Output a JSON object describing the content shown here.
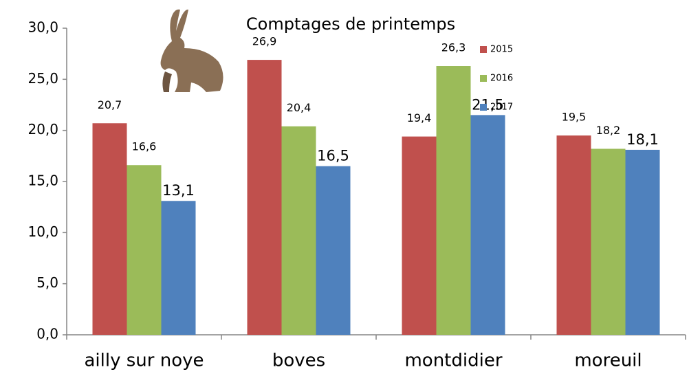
{
  "chart_data": {
    "type": "bar",
    "title": "Comptages de printemps",
    "categories": [
      "ailly sur noye",
      "boves",
      "montdidier",
      "moreuil"
    ],
    "series": [
      {
        "name": "2015",
        "color": "#c0504d",
        "values": [
          20.7,
          26.9,
          19.4,
          19.5
        ],
        "value_labels": [
          "20,7",
          "26,9",
          "19,4",
          "19,5"
        ]
      },
      {
        "name": "2016",
        "color": "#9bbb59",
        "values": [
          16.6,
          20.4,
          26.3,
          18.2
        ],
        "value_labels": [
          "16,6",
          "20,4",
          "26,3",
          "18,2"
        ]
      },
      {
        "name": "2017",
        "color": "#4f81bd",
        "values": [
          13.1,
          16.5,
          21.5,
          18.1
        ],
        "value_labels": [
          "13,1",
          "16,5",
          "21,5",
          "18,1"
        ]
      }
    ],
    "ylim": [
      0,
      30
    ],
    "yticks": [
      {
        "value": 0,
        "label": "0,0"
      },
      {
        "value": 5,
        "label": "5,0"
      },
      {
        "value": 10,
        "label": "10,0"
      },
      {
        "value": 15,
        "label": "15,0"
      },
      {
        "value": 20,
        "label": "20,0"
      },
      {
        "value": 25,
        "label": "25,0"
      },
      {
        "value": 30,
        "label": "30,0"
      }
    ],
    "grid": false
  }
}
